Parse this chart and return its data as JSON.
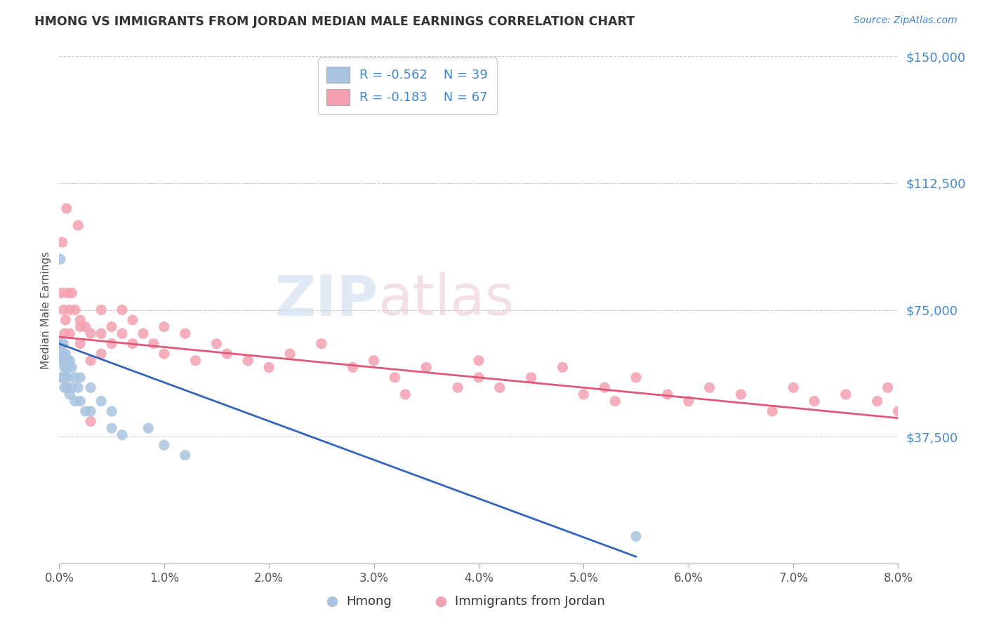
{
  "title": "HMONG VS IMMIGRANTS FROM JORDAN MEDIAN MALE EARNINGS CORRELATION CHART",
  "source": "Source: ZipAtlas.com",
  "ylabel_label": "Median Male Earnings",
  "x_min": 0.0,
  "x_max": 0.08,
  "y_min": 0,
  "y_max": 150000,
  "yticks": [
    0,
    37500,
    75000,
    112500,
    150000
  ],
  "ytick_labels": [
    "",
    "$37,500",
    "$75,000",
    "$112,500",
    "$150,000"
  ],
  "xticks": [
    0.0,
    0.01,
    0.02,
    0.03,
    0.04,
    0.05,
    0.06,
    0.07,
    0.08
  ],
  "xtick_labels": [
    "0.0%",
    "1.0%",
    "2.0%",
    "3.0%",
    "4.0%",
    "5.0%",
    "6.0%",
    "7.0%",
    "8.0%"
  ],
  "hmong_color": "#a8c4e0",
  "jordan_color": "#f4a0b0",
  "hmong_line_color": "#3366bb",
  "jordan_line_color": "#e05878",
  "legend_r_hmong": "R = -0.562",
  "legend_n_hmong": "N = 39",
  "legend_r_jordan": "R = -0.183",
  "legend_n_jordan": "N = 67",
  "hmong_label": "Hmong",
  "jordan_label": "Immigrants from Jordan",
  "watermark_zip": "ZIP",
  "watermark_atlas": "atlas",
  "background_color": "#ffffff",
  "grid_color": "#cccccc",
  "axis_color": "#4488cc",
  "title_color": "#333333",
  "hmong_x": [
    0.0001,
    0.0002,
    0.0002,
    0.0003,
    0.0003,
    0.0003,
    0.0004,
    0.0004,
    0.0004,
    0.0005,
    0.0005,
    0.0005,
    0.0006,
    0.0006,
    0.0007,
    0.0007,
    0.0008,
    0.0008,
    0.0009,
    0.001,
    0.001,
    0.0012,
    0.0012,
    0.0015,
    0.0015,
    0.0018,
    0.002,
    0.002,
    0.0025,
    0.003,
    0.003,
    0.004,
    0.005,
    0.005,
    0.006,
    0.0085,
    0.01,
    0.012,
    0.055
  ],
  "hmong_y": [
    90000,
    62000,
    55000,
    65000,
    60000,
    55000,
    65000,
    60000,
    55000,
    62000,
    58000,
    52000,
    62000,
    55000,
    58000,
    52000,
    60000,
    55000,
    58000,
    60000,
    50000,
    58000,
    52000,
    55000,
    48000,
    52000,
    55000,
    48000,
    45000,
    52000,
    45000,
    48000,
    45000,
    40000,
    38000,
    40000,
    35000,
    32000,
    8000
  ],
  "jordan_x": [
    0.0001,
    0.0002,
    0.0003,
    0.0004,
    0.0005,
    0.0006,
    0.0007,
    0.0008,
    0.001,
    0.001,
    0.0012,
    0.0015,
    0.0018,
    0.002,
    0.002,
    0.002,
    0.0025,
    0.003,
    0.003,
    0.004,
    0.004,
    0.004,
    0.005,
    0.005,
    0.006,
    0.006,
    0.007,
    0.007,
    0.008,
    0.009,
    0.01,
    0.01,
    0.012,
    0.013,
    0.015,
    0.016,
    0.018,
    0.02,
    0.022,
    0.025,
    0.028,
    0.03,
    0.032,
    0.033,
    0.035,
    0.038,
    0.04,
    0.04,
    0.042,
    0.045,
    0.048,
    0.05,
    0.052,
    0.053,
    0.055,
    0.058,
    0.06,
    0.062,
    0.065,
    0.068,
    0.07,
    0.072,
    0.075,
    0.078,
    0.079,
    0.08,
    0.003
  ],
  "jordan_y": [
    65000,
    80000,
    95000,
    75000,
    68000,
    72000,
    105000,
    80000,
    75000,
    68000,
    80000,
    75000,
    100000,
    70000,
    65000,
    72000,
    70000,
    68000,
    60000,
    75000,
    68000,
    62000,
    70000,
    65000,
    75000,
    68000,
    72000,
    65000,
    68000,
    65000,
    70000,
    62000,
    68000,
    60000,
    65000,
    62000,
    60000,
    58000,
    62000,
    65000,
    58000,
    60000,
    55000,
    50000,
    58000,
    52000,
    60000,
    55000,
    52000,
    55000,
    58000,
    50000,
    52000,
    48000,
    55000,
    50000,
    48000,
    52000,
    50000,
    45000,
    52000,
    48000,
    50000,
    48000,
    52000,
    45000,
    42000
  ],
  "hmong_line_x0": 0.0,
  "hmong_line_y0": 65000,
  "hmong_line_x1": 0.055,
  "hmong_line_y1": 2000,
  "jordan_line_x0": 0.0,
  "jordan_line_y0": 67000,
  "jordan_line_x1": 0.08,
  "jordan_line_y1": 43000
}
